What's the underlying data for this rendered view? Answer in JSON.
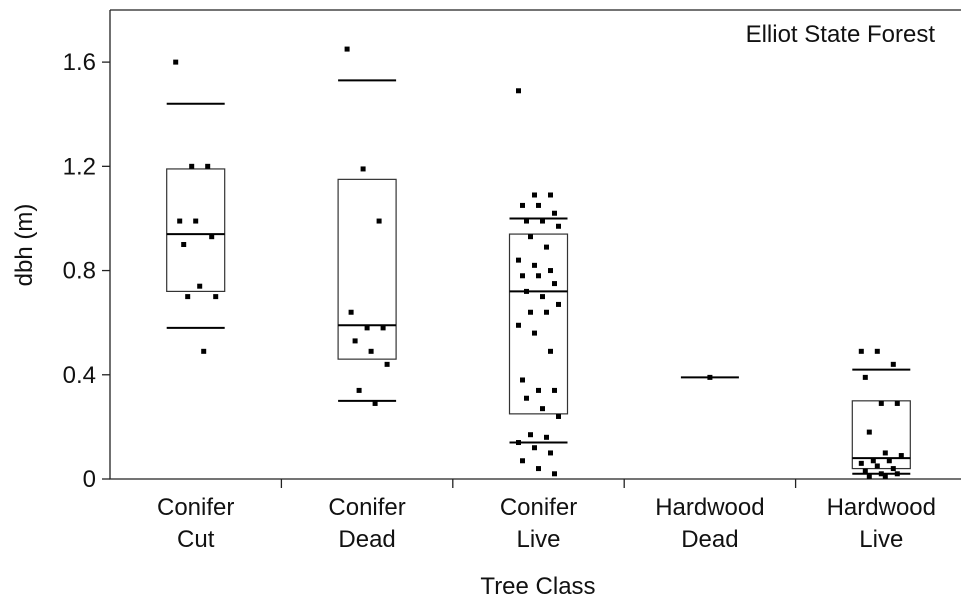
{
  "chart_data": {
    "type": "box",
    "annotation": "Elliot State Forest",
    "y_label": "dbh (m)",
    "x_label": "Tree Class",
    "categories": [
      [
        "Conifer",
        "Cut"
      ],
      [
        "Conifer",
        "Dead"
      ],
      [
        "Conifer",
        "Live"
      ],
      [
        "Hardwood",
        "Dead"
      ],
      [
        "Hardwood",
        "Live"
      ]
    ],
    "ylim": [
      0,
      1.8
    ],
    "yticks": [
      0,
      0.4,
      0.8,
      1.2,
      1.6
    ],
    "color": "#000000",
    "boxes": [
      {
        "whisker_low": 0.58,
        "q1": 0.72,
        "median": 0.94,
        "q3": 1.19,
        "whisker_high": 1.44,
        "points": [
          1.6,
          1.2,
          1.2,
          0.99,
          0.99,
          0.93,
          0.9,
          0.74,
          0.7,
          0.7,
          0.49
        ]
      },
      {
        "whisker_low": 0.3,
        "q1": 0.46,
        "median": 0.59,
        "q3": 1.15,
        "whisker_high": 1.53,
        "points": [
          1.65,
          1.19,
          0.99,
          0.64,
          0.58,
          0.58,
          0.53,
          0.49,
          0.44,
          0.34,
          0.29
        ]
      },
      {
        "whisker_low": 0.14,
        "q1": 0.25,
        "median": 0.72,
        "q3": 0.94,
        "whisker_high": 1.0,
        "points": [
          1.49,
          1.09,
          1.09,
          1.05,
          1.05,
          1.02,
          0.99,
          0.99,
          0.97,
          0.93,
          0.89,
          0.84,
          0.82,
          0.8,
          0.78,
          0.78,
          0.75,
          0.72,
          0.7,
          0.67,
          0.64,
          0.64,
          0.59,
          0.56,
          0.49,
          0.38,
          0.34,
          0.34,
          0.31,
          0.27,
          0.24,
          0.17,
          0.16,
          0.14,
          0.12,
          0.1,
          0.07,
          0.04,
          0.02
        ]
      },
      {
        "whisker_low": null,
        "q1": null,
        "median": 0.39,
        "q3": null,
        "whisker_high": null,
        "points": [
          0.39
        ]
      },
      {
        "whisker_low": 0.02,
        "q1": 0.04,
        "median": 0.08,
        "q3": 0.3,
        "whisker_high": 0.42,
        "points": [
          0.49,
          0.49,
          0.44,
          0.39,
          0.29,
          0.29,
          0.18,
          0.1,
          0.09,
          0.07,
          0.07,
          0.06,
          0.05,
          0.04,
          0.03,
          0.02,
          0.02,
          0.01,
          0.01
        ]
      }
    ]
  }
}
